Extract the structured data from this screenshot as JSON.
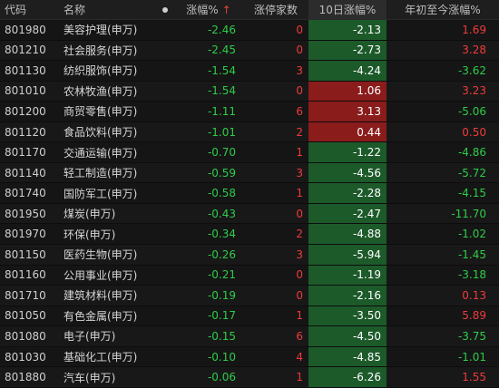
{
  "header": {
    "code": "代码",
    "name": "名称",
    "change_pct": "涨幅%",
    "change_sort_arrow": "↑",
    "limit_up_count": "涨停家数",
    "ten_day_change": "10日涨幅%",
    "ytd_change": "年初至今涨幅%"
  },
  "colors": {
    "up": "#ef3b3b",
    "down": "#2ecc49",
    "bar_down": "#1d5a2a",
    "bar_up": "#8a1c1c"
  },
  "rows": [
    {
      "code": "801980",
      "name": "美容护理(申万)",
      "chg": "-2.46",
      "limit": "0",
      "d10": "-2.13",
      "ytd": "1.69"
    },
    {
      "code": "801210",
      "name": "社会服务(申万)",
      "chg": "-2.45",
      "limit": "0",
      "d10": "-2.73",
      "ytd": "3.28"
    },
    {
      "code": "801130",
      "name": "纺织服饰(申万)",
      "chg": "-1.54",
      "limit": "3",
      "d10": "-4.24",
      "ytd": "-3.62"
    },
    {
      "code": "801010",
      "name": "农林牧渔(申万)",
      "chg": "-1.54",
      "limit": "0",
      "d10": "1.06",
      "ytd": "3.23"
    },
    {
      "code": "801200",
      "name": "商贸零售(申万)",
      "chg": "-1.11",
      "limit": "6",
      "d10": "3.13",
      "ytd": "-5.06"
    },
    {
      "code": "801120",
      "name": "食品饮料(申万)",
      "chg": "-1.01",
      "limit": "2",
      "d10": "0.44",
      "ytd": "0.50"
    },
    {
      "code": "801170",
      "name": "交通运输(申万)",
      "chg": "-0.70",
      "limit": "1",
      "d10": "-1.22",
      "ytd": "-4.86"
    },
    {
      "code": "801140",
      "name": "轻工制造(申万)",
      "chg": "-0.59",
      "limit": "3",
      "d10": "-4.56",
      "ytd": "-5.72"
    },
    {
      "code": "801740",
      "name": "国防军工(申万)",
      "chg": "-0.58",
      "limit": "1",
      "d10": "-2.28",
      "ytd": "-4.15"
    },
    {
      "code": "801950",
      "name": "煤炭(申万)",
      "chg": "-0.43",
      "limit": "0",
      "d10": "-2.47",
      "ytd": "-11.70"
    },
    {
      "code": "801970",
      "name": "环保(申万)",
      "chg": "-0.34",
      "limit": "2",
      "d10": "-4.88",
      "ytd": "-1.02"
    },
    {
      "code": "801150",
      "name": "医药生物(申万)",
      "chg": "-0.26",
      "limit": "3",
      "d10": "-5.94",
      "ytd": "-1.45"
    },
    {
      "code": "801160",
      "name": "公用事业(申万)",
      "chg": "-0.21",
      "limit": "0",
      "d10": "-1.19",
      "ytd": "-3.18"
    },
    {
      "code": "801710",
      "name": "建筑材料(申万)",
      "chg": "-0.19",
      "limit": "0",
      "d10": "-2.16",
      "ytd": "0.13"
    },
    {
      "code": "801050",
      "name": "有色金属(申万)",
      "chg": "-0.17",
      "limit": "1",
      "d10": "-3.50",
      "ytd": "5.89"
    },
    {
      "code": "801080",
      "name": "电子(申万)",
      "chg": "-0.15",
      "limit": "6",
      "d10": "-4.50",
      "ytd": "-3.75"
    },
    {
      "code": "801030",
      "name": "基础化工(申万)",
      "chg": "-0.10",
      "limit": "4",
      "d10": "-4.85",
      "ytd": "-1.01"
    },
    {
      "code": "801880",
      "name": "汽车(申万)",
      "chg": "-0.06",
      "limit": "1",
      "d10": "-6.26",
      "ytd": "1.55"
    }
  ]
}
